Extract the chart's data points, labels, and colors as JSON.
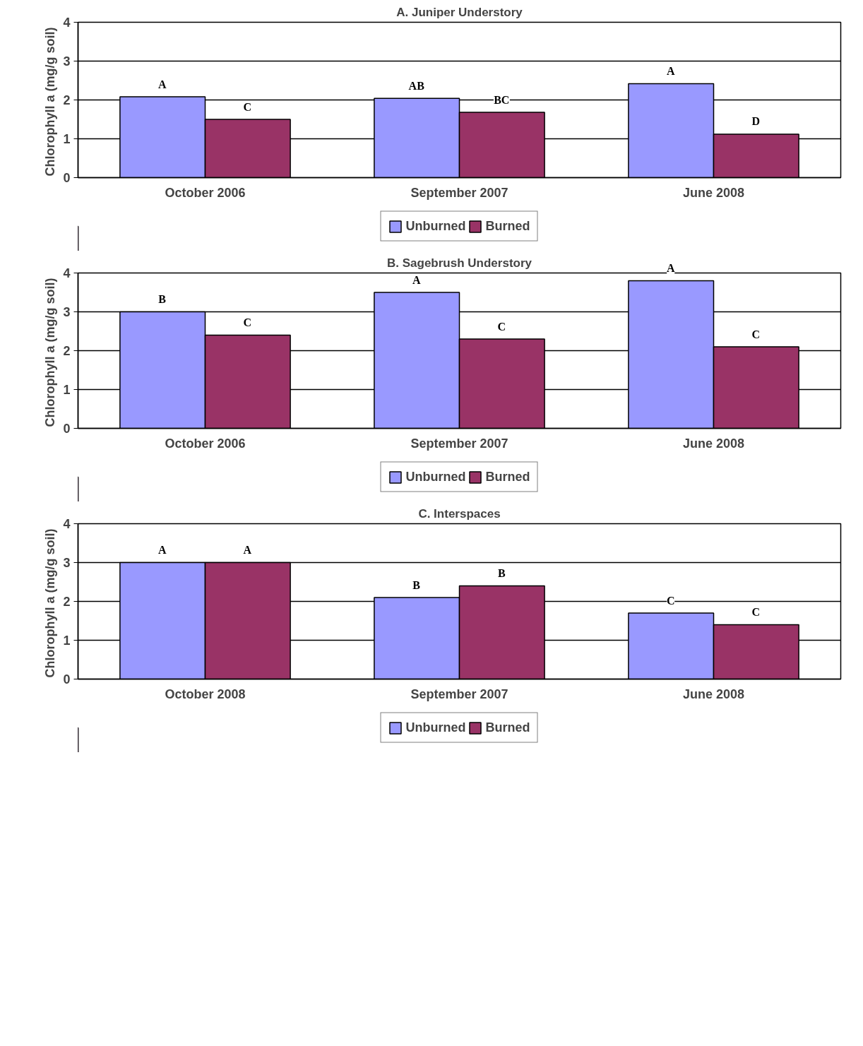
{
  "chart_data": [
    {
      "type": "bar",
      "title": "A. Juniper Understory",
      "ylabel": "Chlorophyll a  (mg/g soil)",
      "categories": [
        "October 2006",
        "September 2007",
        "June 2008"
      ],
      "ylim": [
        0,
        4
      ],
      "yticks": [
        0,
        1,
        2,
        3,
        4
      ],
      "grid": "y",
      "legend": "bottom",
      "series": [
        {
          "name": "Unburned",
          "color": "#9999ff",
          "values": [
            2.08,
            2.04,
            2.42
          ],
          "value_labels": [
            "A",
            "AB",
            "A"
          ]
        },
        {
          "name": "Burned",
          "color": "#993366",
          "values": [
            1.5,
            1.68,
            1.12
          ],
          "value_labels": [
            "C",
            "BC",
            "D"
          ]
        }
      ]
    },
    {
      "type": "bar",
      "title": "B. Sagebrush Understory",
      "ylabel": "Chlorophyll a  (mg/g soil)",
      "categories": [
        "October 2006",
        "September 2007",
        "June 2008"
      ],
      "ylim": [
        0,
        4
      ],
      "yticks": [
        0,
        1,
        2,
        3,
        4
      ],
      "grid": "y",
      "legend": "bottom",
      "series": [
        {
          "name": "Unburned",
          "color": "#9999ff",
          "values": [
            3.0,
            3.5,
            3.8
          ],
          "value_labels": [
            "B",
            "A",
            "A"
          ]
        },
        {
          "name": "Burned",
          "color": "#993366",
          "values": [
            2.4,
            2.3,
            2.1
          ],
          "value_labels": [
            "C",
            "C",
            "C"
          ]
        }
      ]
    },
    {
      "type": "bar",
      "title": "C. Interspaces",
      "ylabel": "Chlorophyll a  (mg/g soil)",
      "categories": [
        "October 2008",
        "September 2007",
        "June 2008"
      ],
      "ylim": [
        0,
        4
      ],
      "yticks": [
        0,
        1,
        2,
        3,
        4
      ],
      "grid": "y",
      "legend": "bottom",
      "series": [
        {
          "name": "Unburned",
          "color": "#9999ff",
          "values": [
            3.0,
            2.1,
            1.7
          ],
          "value_labels": [
            "A",
            "B",
            "C"
          ]
        },
        {
          "name": "Burned",
          "color": "#993366",
          "values": [
            3.0,
            2.4,
            1.4
          ],
          "value_labels": [
            "A",
            "B",
            "C"
          ]
        }
      ]
    }
  ]
}
